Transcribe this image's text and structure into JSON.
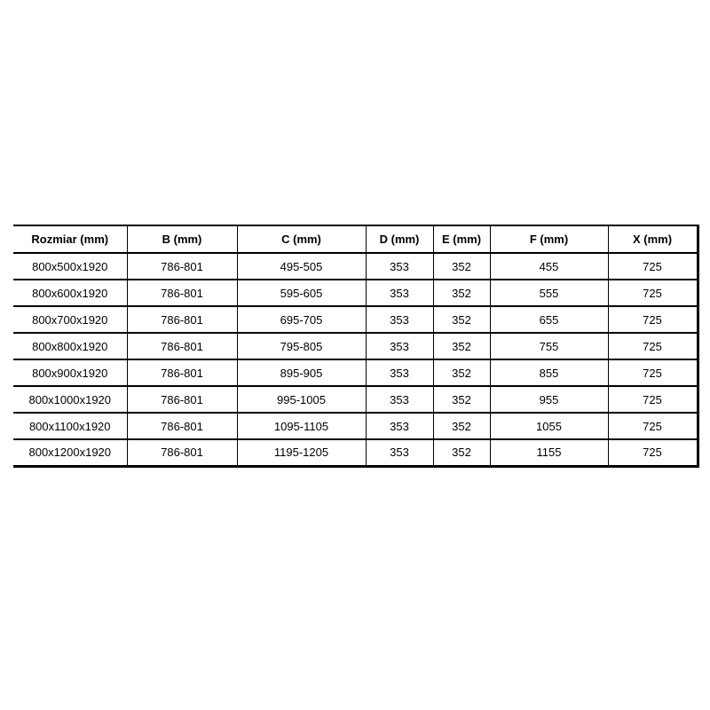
{
  "colors": {
    "background": "#ffffff",
    "border": "#000000",
    "text": "#000000"
  },
  "chart_data": {
    "type": "table",
    "columns": [
      "Rozmiar (mm)",
      "B (mm)",
      "C (mm)",
      "D (mm)",
      "E (mm)",
      "F (mm)",
      "X (mm)"
    ],
    "rows": [
      [
        "800x500x1920",
        "786-801",
        "495-505",
        "353",
        "352",
        "455",
        "725"
      ],
      [
        "800x600x1920",
        "786-801",
        "595-605",
        "353",
        "352",
        "555",
        "725"
      ],
      [
        "800x700x1920",
        "786-801",
        "695-705",
        "353",
        "352",
        "655",
        "725"
      ],
      [
        "800x800x1920",
        "786-801",
        "795-805",
        "353",
        "352",
        "755",
        "725"
      ],
      [
        "800x900x1920",
        "786-801",
        "895-905",
        "353",
        "352",
        "855",
        "725"
      ],
      [
        "800x1000x1920",
        "786-801",
        "995-1005",
        "353",
        "352",
        "955",
        "725"
      ],
      [
        "800x1100x1920",
        "786-801",
        "1095-1105",
        "353",
        "352",
        "1055",
        "725"
      ],
      [
        "800x1200x1920",
        "786-801",
        "1195-1205",
        "353",
        "352",
        "1155",
        "725"
      ]
    ],
    "layout_hints": {
      "grid": "on",
      "header_bold": true,
      "left_outer_border": false
    }
  }
}
